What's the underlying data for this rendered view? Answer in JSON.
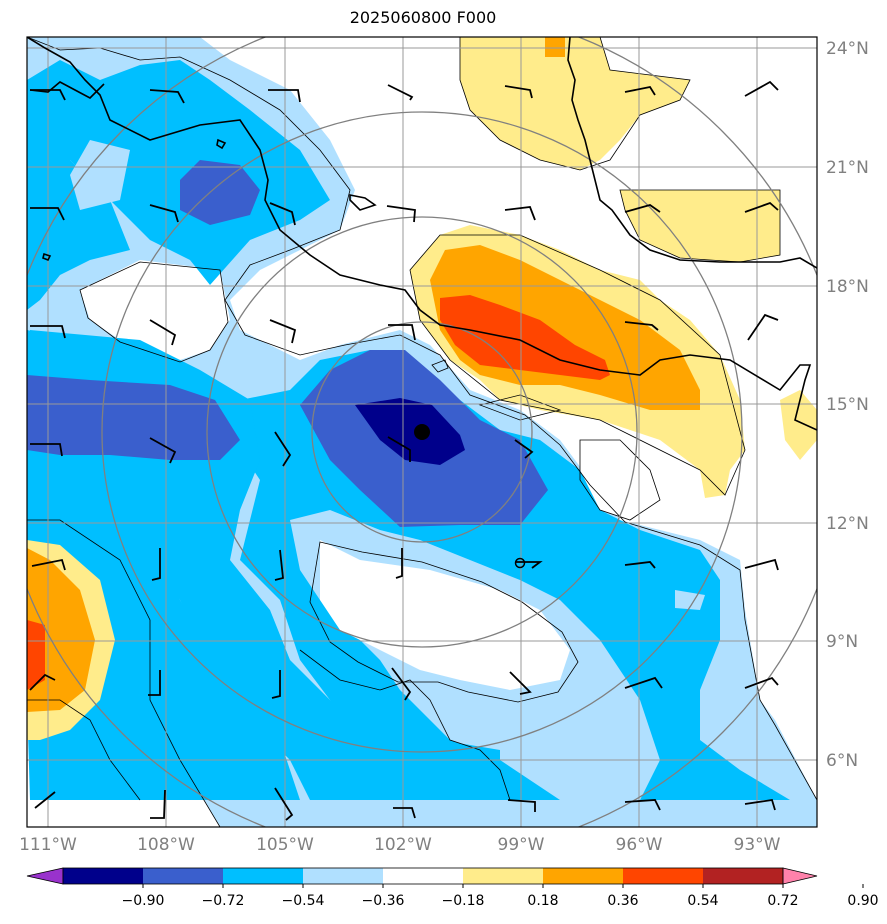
{
  "title": "2025060800 F000",
  "axes": {
    "lat_labels": [
      "24°N",
      "21°N",
      "18°N",
      "15°N",
      "12°N",
      "9°N",
      "6°N"
    ],
    "lon_labels": [
      "111°W",
      "108°W",
      "105°W",
      "102°W",
      "99°W",
      "96°W",
      "93°W"
    ],
    "label_color": "#808080"
  },
  "colorbar": {
    "ticks": [
      "−0.90",
      "−0.72",
      "−0.54",
      "−0.36",
      "−0.18",
      "0.18",
      "0.36",
      "0.54",
      "0.72",
      "0.90"
    ],
    "colors": [
      "#9932cc",
      "#00008b",
      "#3a5fcd",
      "#00bfff",
      "#b0e0ff",
      "#ffffff",
      "#ffec8b",
      "#ffa500",
      "#ff4500",
      "#b22222",
      "#ff82ab"
    ]
  },
  "map": {
    "center_marker": "storm-center",
    "small_marker": "vortex-ring"
  }
}
